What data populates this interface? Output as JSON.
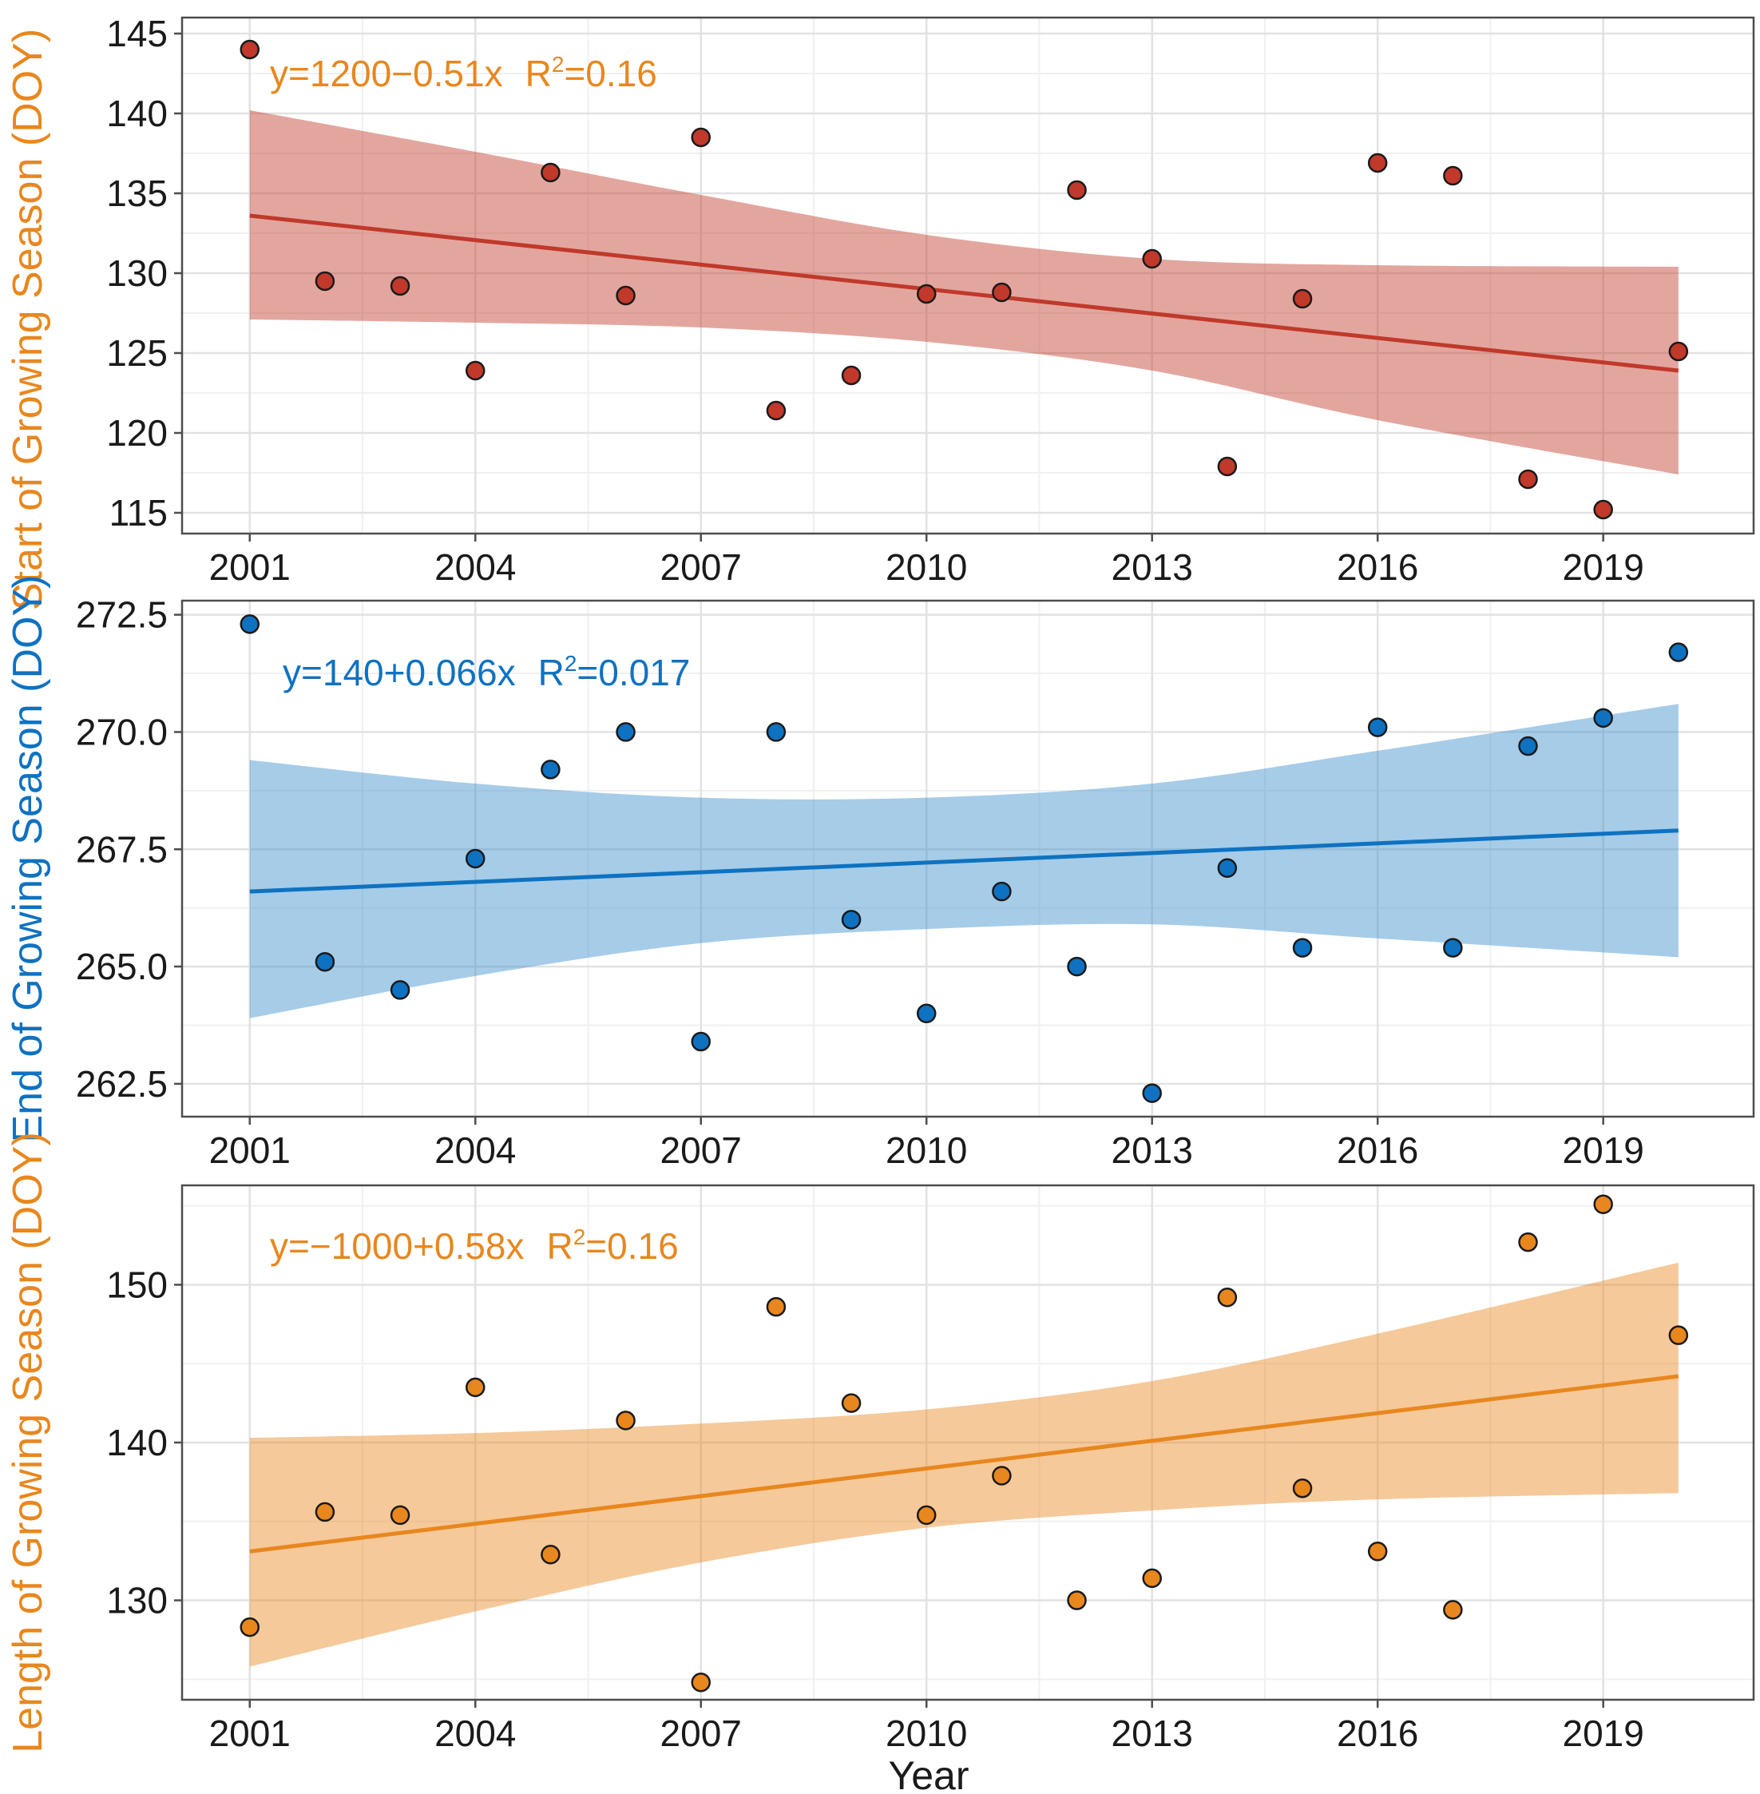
{
  "chart_data": [
    {
      "type": "scatter",
      "panel": "start",
      "ylabel": "Start of Growing Season (DOY)",
      "equation": "y=1200−0.51x",
      "r2_label": "R",
      "r2_sup": "2",
      "r2_value": "=0.16",
      "color": "#C0392B",
      "label_color": "#E8871E",
      "band_color": "#C0392B",
      "x": [
        2001,
        2002,
        2003,
        2004,
        2005,
        2006,
        2007,
        2008,
        2009,
        2010,
        2011,
        2012,
        2013,
        2014,
        2015,
        2016,
        2017,
        2018,
        2019,
        2020
      ],
      "y": [
        144.0,
        129.5,
        129.2,
        123.9,
        136.3,
        128.6,
        138.5,
        121.4,
        123.6,
        128.7,
        128.8,
        135.2,
        130.9,
        117.9,
        128.4,
        136.9,
        136.1,
        117.1,
        115.2,
        125.1
      ],
      "xlim": [
        2000.1,
        2021.0
      ],
      "ylim": [
        113.7,
        146.0
      ],
      "xticks": [
        "2001",
        "2004",
        "2007",
        "2010",
        "2013",
        "2016",
        "2019"
      ],
      "yticks": [
        "115",
        "120",
        "125",
        "130",
        "135",
        "140",
        "145"
      ],
      "ytick_values": [
        115,
        120,
        125,
        130,
        135,
        140,
        145
      ],
      "fit": {
        "x0": 2001,
        "y0": 133.6,
        "x1": 2020,
        "y1": 123.9
      },
      "band_upper": [
        [
          2001,
          140.2
        ],
        [
          2004,
          137.6
        ],
        [
          2007,
          134.9
        ],
        [
          2010,
          132.4
        ],
        [
          2013,
          130.9
        ],
        [
          2016,
          130.5
        ],
        [
          2020,
          130.4
        ]
      ],
      "band_lower": [
        [
          2001,
          127.1
        ],
        [
          2004,
          126.9
        ],
        [
          2007,
          126.6
        ],
        [
          2010,
          125.7
        ],
        [
          2013,
          123.9
        ],
        [
          2016,
          120.8
        ],
        [
          2020,
          117.4
        ]
      ]
    },
    {
      "type": "scatter",
      "panel": "end",
      "ylabel": "End of Growing Season (DOY)",
      "equation": "y=140+0.066x",
      "r2_label": "R",
      "r2_sup": "2",
      "r2_value": "=0.017",
      "color": "#0E72C1",
      "label_color": "#0E72C1",
      "band_color": "#3A8FCB",
      "x": [
        2001,
        2002,
        2003,
        2004,
        2005,
        2006,
        2007,
        2008,
        2009,
        2010,
        2011,
        2012,
        2013,
        2014,
        2015,
        2016,
        2017,
        2018,
        2019,
        2020
      ],
      "y": [
        272.3,
        265.1,
        264.5,
        267.3,
        269.2,
        270.0,
        263.4,
        270.0,
        266.0,
        264.0,
        266.6,
        265.0,
        262.3,
        267.1,
        265.4,
        270.1,
        265.4,
        269.7,
        270.3,
        271.7
      ],
      "xlim": [
        2000.1,
        2021.0
      ],
      "ylim": [
        261.8,
        272.8
      ],
      "xticks": [
        "2001",
        "2004",
        "2007",
        "2010",
        "2013",
        "2016",
        "2019"
      ],
      "yticks": [
        "262.5",
        "265.0",
        "267.5",
        "270.0",
        "272.5"
      ],
      "ytick_values": [
        262.5,
        265.0,
        267.5,
        270.0,
        272.5
      ],
      "fit": {
        "x0": 2001,
        "y0": 266.6,
        "x1": 2020,
        "y1": 267.9
      },
      "band_upper": [
        [
          2001,
          269.4
        ],
        [
          2004,
          268.9
        ],
        [
          2007,
          268.6
        ],
        [
          2010,
          268.6
        ],
        [
          2013,
          268.9
        ],
        [
          2016,
          269.6
        ],
        [
          2020,
          270.6
        ]
      ],
      "band_lower": [
        [
          2001,
          263.9
        ],
        [
          2004,
          264.8
        ],
        [
          2007,
          265.5
        ],
        [
          2010,
          265.8
        ],
        [
          2013,
          265.9
        ],
        [
          2016,
          265.6
        ],
        [
          2020,
          265.2
        ]
      ]
    },
    {
      "type": "scatter",
      "panel": "length",
      "ylabel": "Length of Growing Season (DOY)",
      "equation": "y=−1000+0.58x",
      "r2_label": "R",
      "r2_sup": "2",
      "r2_value": "=0.16",
      "color": "#E8871E",
      "label_color": "#E8871E",
      "band_color": "#E8871E",
      "x": [
        2001,
        2002,
        2003,
        2004,
        2005,
        2006,
        2007,
        2008,
        2009,
        2010,
        2011,
        2012,
        2013,
        2014,
        2015,
        2016,
        2017,
        2018,
        2019,
        2020
      ],
      "y": [
        128.3,
        135.6,
        135.4,
        143.5,
        132.9,
        141.4,
        124.8,
        148.6,
        142.5,
        135.4,
        137.9,
        130.0,
        131.4,
        149.2,
        137.1,
        133.1,
        129.4,
        152.7,
        155.1,
        146.8
      ],
      "xlim": [
        2000.1,
        2021.0
      ],
      "ylim": [
        123.7,
        156.3
      ],
      "xticks": [
        "2001",
        "2004",
        "2007",
        "2010",
        "2013",
        "2016",
        "2019"
      ],
      "yticks": [
        "130",
        "140",
        "150"
      ],
      "ytick_values": [
        130,
        140,
        150
      ],
      "fit": {
        "x0": 2001,
        "y0": 133.1,
        "x1": 2020,
        "y1": 144.2
      },
      "band_upper": [
        [
          2001,
          140.3
        ],
        [
          2004,
          140.6
        ],
        [
          2007,
          141.2
        ],
        [
          2010,
          142.1
        ],
        [
          2013,
          143.9
        ],
        [
          2016,
          146.9
        ],
        [
          2020,
          151.4
        ]
      ],
      "band_lower": [
        [
          2001,
          125.8
        ],
        [
          2004,
          129.3
        ],
        [
          2007,
          132.4
        ],
        [
          2010,
          134.6
        ],
        [
          2013,
          135.7
        ],
        [
          2016,
          136.4
        ],
        [
          2020,
          136.8
        ]
      ]
    }
  ],
  "xlabel": "Year"
}
